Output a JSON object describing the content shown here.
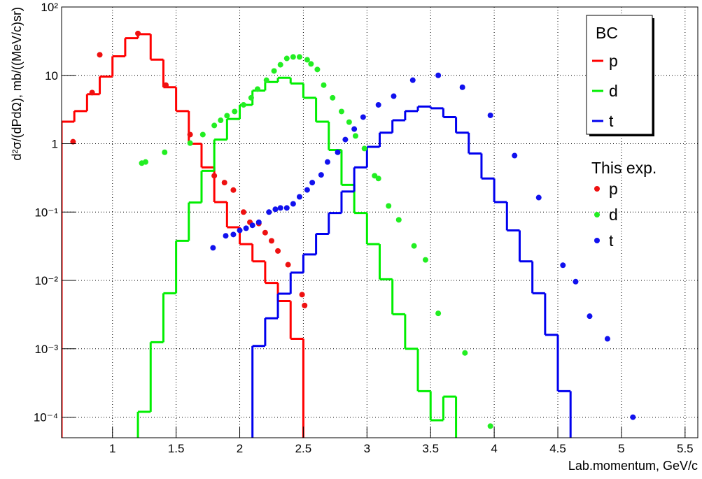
{
  "chart_data": {
    "type": "histogram",
    "x_label": "Lab.momentum, GeV/c",
    "y_label": "d²σ/(dPdΩ), mb/((MeV/c)sr)",
    "xlim": [
      0.6,
      5.6
    ],
    "ylim": [
      5e-05,
      100
    ],
    "log_y": true,
    "grid": true,
    "xticks": [
      1,
      1.5,
      2,
      2.5,
      3,
      3.5,
      4,
      4.5,
      5,
      5.5
    ],
    "yticks": [
      {
        "value": 0.0001,
        "label": "10⁻⁴"
      },
      {
        "value": 0.001,
        "label": "10⁻³"
      },
      {
        "value": 0.01,
        "label": "10⁻²"
      },
      {
        "value": 0.1,
        "label": "10⁻¹"
      },
      1,
      10,
      {
        "value": 100,
        "label": "10²"
      }
    ],
    "legend_position": "top-right",
    "series_groups": [
      {
        "title": "BC",
        "type": "histogram",
        "series": [
          {
            "name": "p",
            "color": "#ff0000",
            "bins": [
              0.6,
              0.7,
              0.8,
              0.9,
              1.0,
              1.1,
              1.2,
              1.3,
              1.4,
              1.5,
              1.6,
              1.7,
              1.8,
              1.9,
              2.0,
              2.1,
              2.2,
              2.3,
              2.4,
              2.5
            ],
            "values": [
              2.1,
              3,
              5.3,
              9.6,
              19,
              35,
              40,
              17,
              6.7,
              3,
              1,
              0.45,
              0.14,
              0.06,
              0.034,
              0.019,
              0.0092,
              0.005,
              0.0014
            ]
          },
          {
            "name": "d",
            "color": "#00ee00",
            "bins": [
              1.2,
              1.3,
              1.4,
              1.5,
              1.6,
              1.7,
              1.8,
              1.9,
              2.0,
              2.1,
              2.2,
              2.3,
              2.4,
              2.5,
              2.6,
              2.7,
              2.8,
              2.9,
              3.0,
              3.1,
              3.2,
              3.3,
              3.4,
              3.5,
              3.6,
              3.7,
              3.8,
              3.9,
              4.0
            ],
            "values": [
              0.00012,
              0.00125,
              0.0065,
              0.038,
              0.138,
              0.4,
              1.15,
              2.3,
              3.7,
              6,
              8,
              9.2,
              7.6,
              4.7,
              2.1,
              0.81,
              0.25,
              0.097,
              0.034,
              0.0104,
              0.0032,
              0.001,
              0.00024,
              9e-05,
              0.0002,
              0,
              0,
              0
            ]
          },
          {
            "name": "t",
            "color": "#0000ee",
            "bins": [
              1.7,
              1.8,
              1.9,
              2.0,
              2.1,
              2.2,
              2.3,
              2.4,
              2.5,
              2.6,
              2.7,
              2.8,
              2.9,
              3.0,
              3.1,
              3.2,
              3.3,
              3.4,
              3.5,
              3.6,
              3.7,
              3.8,
              3.9,
              4.0,
              4.1,
              4.2,
              4.3,
              4.4,
              4.5,
              4.6,
              4.7
            ],
            "values": [
              0,
              0,
              0,
              0,
              0.0011,
              0.0028,
              0.0064,
              0.013,
              0.024,
              0.048,
              0.097,
              0.2,
              0.45,
              0.9,
              1.45,
              2.2,
              3,
              3.5,
              3.3,
              2.45,
              1.45,
              0.72,
              0.31,
              0.14,
              0.054,
              0.019,
              0.0065,
              0.0016,
              0.00024,
              0
            ]
          }
        ]
      },
      {
        "title": "This exp.",
        "type": "scatter",
        "series": [
          {
            "name": "p",
            "color": "#ee1111",
            "x": [
              0.69,
              0.84,
              0.9,
              1.2,
              1.42,
              1.61,
              1.8,
              1.88,
              1.95,
              2.03,
              2.08,
              2.15,
              2.2,
              2.25,
              2.3,
              2.38,
              2.49,
              2.51
            ],
            "values": [
              1.07,
              5.6,
              20,
              41,
              7.2,
              1.36,
              0.34,
              0.27,
              0.21,
              0.1,
              0.071,
              0.068,
              0.05,
              0.038,
              0.027,
              0.017,
              0.0062,
              0.0043
            ]
          },
          {
            "name": "d",
            "color": "#22ee22",
            "x": [
              1.23,
              1.26,
              1.41,
              1.61,
              1.71,
              1.8,
              1.85,
              1.9,
              1.96,
              2.03,
              2.09,
              2.14,
              2.21,
              2.27,
              2.32,
              2.37,
              2.42,
              2.47,
              2.53,
              2.56,
              2.61,
              2.66,
              2.73,
              2.8,
              2.86,
              2.91,
              2.98,
              3.06,
              3.09,
              3.17,
              3.25,
              3.37,
              3.46,
              3.56,
              3.77,
              3.97
            ],
            "values": [
              0.52,
              0.54,
              0.75,
              1.02,
              1.36,
              1.85,
              2.2,
              2.57,
              2.96,
              3.7,
              4.7,
              6.3,
              8.5,
              11.6,
              14.3,
              17.7,
              18.6,
              18.6,
              16.9,
              14.7,
              12.2,
              7.2,
              4.7,
              2.96,
              2.07,
              1.3,
              0.85,
              0.34,
              0.31,
              0.123,
              0.077,
              0.032,
              0.02,
              0.0033,
              0.00087,
              7.4e-05
            ]
          },
          {
            "name": "t",
            "color": "#1111ee",
            "x": [
              1.79,
              1.89,
              1.95,
              2.0,
              2.05,
              2.1,
              2.15,
              2.23,
              2.28,
              2.32,
              2.37,
              2.42,
              2.47,
              2.53,
              2.57,
              2.64,
              2.69,
              2.77,
              2.83,
              2.9,
              2.97,
              3.09,
              3.21,
              3.36,
              3.56,
              3.75,
              3.97,
              4.16,
              4.35,
              4.54,
              4.64,
              4.75,
              4.89,
              5.09
            ],
            "values": [
              0.03,
              0.045,
              0.047,
              0.054,
              0.058,
              0.064,
              0.071,
              0.1,
              0.11,
              0.115,
              0.115,
              0.132,
              0.167,
              0.211,
              0.27,
              0.35,
              0.54,
              0.75,
              1.15,
              1.64,
              2.45,
              3.7,
              4.96,
              8.5,
              10,
              6.7,
              2.6,
              0.67,
              0.163,
              0.0167,
              0.0096,
              0.003,
              0.0014,
              0.0001
            ]
          }
        ]
      }
    ]
  }
}
